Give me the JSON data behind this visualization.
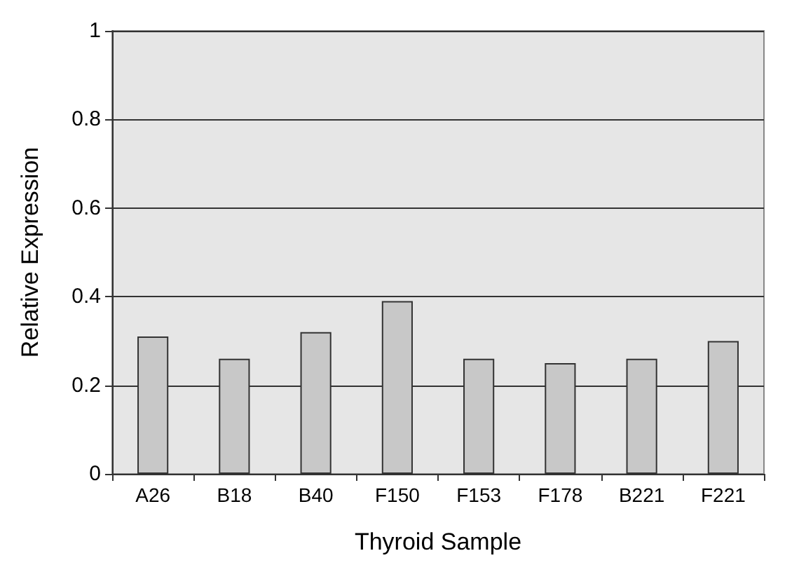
{
  "chart_data": {
    "type": "bar",
    "xlabel": "Thyroid Sample",
    "ylabel": "Relative Expression",
    "categories": [
      "A26",
      "B18",
      "B40",
      "F150",
      "F153",
      "F178",
      "B221",
      "F221"
    ],
    "values": [
      0.31,
      0.26,
      0.32,
      0.39,
      0.26,
      0.25,
      0.26,
      0.3
    ],
    "color": "#c8c8c8",
    "ylim": [
      0,
      1
    ],
    "yticks": [
      0,
      0.2,
      0.4,
      0.6,
      0.8,
      1
    ],
    "grid": "y"
  }
}
